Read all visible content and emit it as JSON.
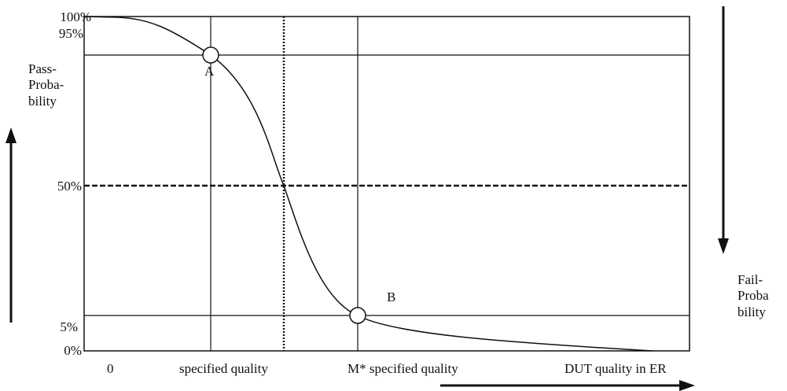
{
  "chart_data": {
    "type": "line",
    "y_ticks": [
      "100%",
      "95%",
      "50%",
      "5%",
      "0%"
    ],
    "x_ticks": [
      "0",
      "specified quality",
      "M* specified quality",
      "DUT quality in ER"
    ],
    "y_axis_label": "Pass-\nProba-\nbility",
    "y2_axis_label": "Fail-\nProba\nbility",
    "points": [
      {
        "name": "A"
      },
      {
        "name": "B"
      }
    ],
    "grid": true,
    "colors": {
      "line": "#111111",
      "background": "#ffffff"
    }
  }
}
